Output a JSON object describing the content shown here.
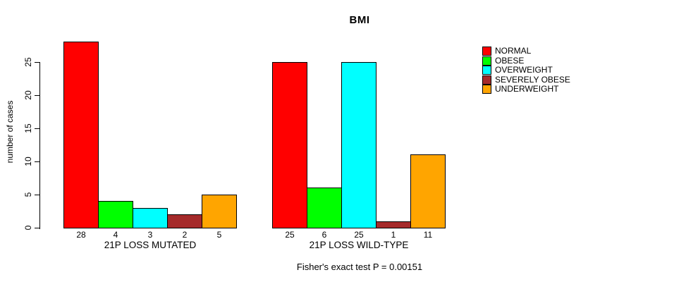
{
  "chart_data": {
    "type": "bar",
    "title": "BMI",
    "subtitle": "Fisher's exact test P = 0.00151",
    "ylabel": "number of cases",
    "xlabel": "",
    "ylim": [
      0,
      25
    ],
    "yticks": [
      0,
      5,
      10,
      15,
      20,
      25
    ],
    "grid": false,
    "legend_position": "top-right",
    "bar_value_labels_shown": true,
    "categories": [
      "21P LOSS MUTATED",
      "21P LOSS WILD-TYPE"
    ],
    "series": [
      {
        "name": "NORMAL",
        "color": "#ff0000",
        "values": [
          28,
          25
        ]
      },
      {
        "name": "OBESE",
        "color": "#00ff00",
        "values": [
          4,
          6
        ]
      },
      {
        "name": "OVERWEIGHT",
        "color": "#00ffff",
        "values": [
          3,
          25
        ]
      },
      {
        "name": "SEVERELY OBESE",
        "color": "#a52a2a",
        "values": [
          2,
          1
        ]
      },
      {
        "name": "UNDERWEIGHT",
        "color": "#ffa500",
        "values": [
          5,
          11
        ]
      }
    ],
    "colors": {
      "axis": "#000000",
      "text": "#000000",
      "background": "#ffffff"
    }
  }
}
